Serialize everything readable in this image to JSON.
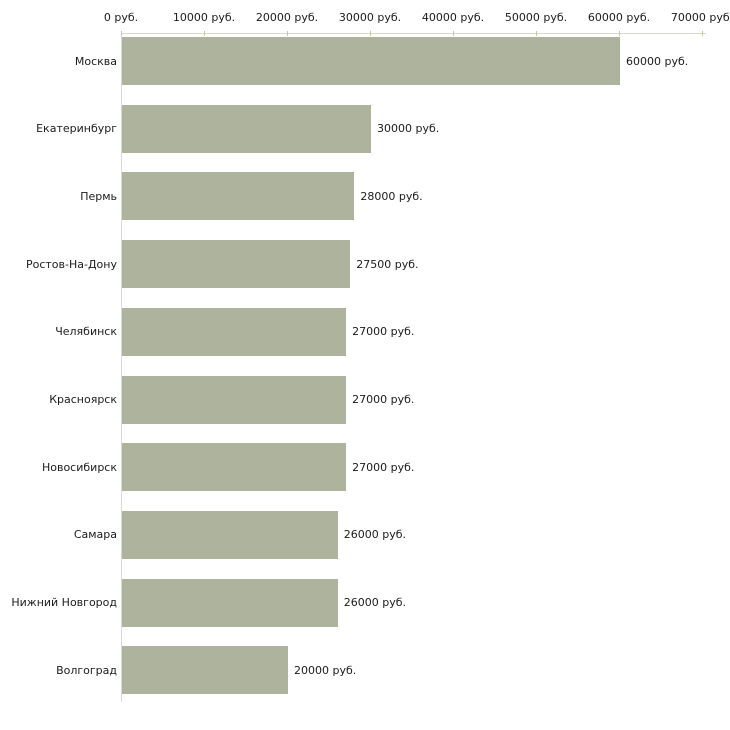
{
  "chart_data": {
    "type": "bar",
    "orientation": "horizontal",
    "title": "",
    "xlabel": "",
    "ylabel": "",
    "unit": "руб.",
    "xlim": [
      0,
      70000
    ],
    "grid": false,
    "legend": "none",
    "x_tick_labels": [
      "0 руб.",
      "10000 руб.",
      "20000 руб.",
      "30000 руб.",
      "40000 руб.",
      "50000 руб.",
      "60000 руб.",
      "70000 руб."
    ],
    "x_tick_values": [
      0,
      10000,
      20000,
      30000,
      40000,
      50000,
      60000,
      70000
    ],
    "categories": [
      "Москва",
      "Екатеринбург",
      "Пермь",
      "Ростов-На-Дону",
      "Челябинск",
      "Красноярск",
      "Новосибирск",
      "Самара",
      "Нижний Новгород",
      "Волгоград"
    ],
    "values": [
      60000,
      30000,
      28000,
      27500,
      27000,
      27000,
      27000,
      26000,
      26000,
      20000
    ],
    "value_labels": [
      "60000 руб.",
      "30000 руб.",
      "28000 руб.",
      "27500 руб.",
      "27000 руб.",
      "27000 руб.",
      "27000 руб.",
      "26000 руб.",
      "26000 руб.",
      "20000 руб."
    ]
  },
  "colors": {
    "bar": "#adb39c",
    "x_axis_line": "#d6d6ca",
    "y_axis_line": "#d8d8d4",
    "tick": "#c5c99f",
    "text": "#1c1c1c",
    "background": "#ffffff"
  }
}
